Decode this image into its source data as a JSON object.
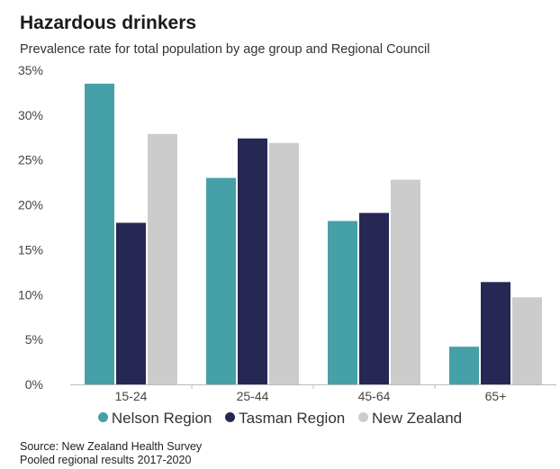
{
  "header": {
    "title": "Hazardous drinkers",
    "subtitle": "Prevalence rate for total population by age group and Regional Council"
  },
  "footer": {
    "source": "Source: New Zealand Health Survey",
    "note": "Pooled regional results 2017-2020"
  },
  "chart_data": {
    "type": "bar",
    "title": "Hazardous drinkers",
    "subtitle": "Prevalence rate for total population by age group and Regional Council",
    "categories": [
      "15-24",
      "25-44",
      "45-64",
      "65+"
    ],
    "series": [
      {
        "name": "Nelson Region",
        "color": "#46a0a8",
        "values": [
          33.5,
          23.0,
          18.2,
          4.2
        ]
      },
      {
        "name": "Tasman Region",
        "color": "#262853",
        "values": [
          18.0,
          27.4,
          19.1,
          11.4
        ]
      },
      {
        "name": "New Zealand",
        "color": "#cccccc",
        "values": [
          27.9,
          26.9,
          22.8,
          9.7
        ]
      }
    ],
    "yticks": [
      "0%",
      "5%",
      "10%",
      "15%",
      "20%",
      "25%",
      "30%",
      "35%"
    ],
    "ylim": [
      0,
      35
    ],
    "xlabel": "",
    "ylabel": "",
    "grid": false,
    "legend": "bottom"
  }
}
